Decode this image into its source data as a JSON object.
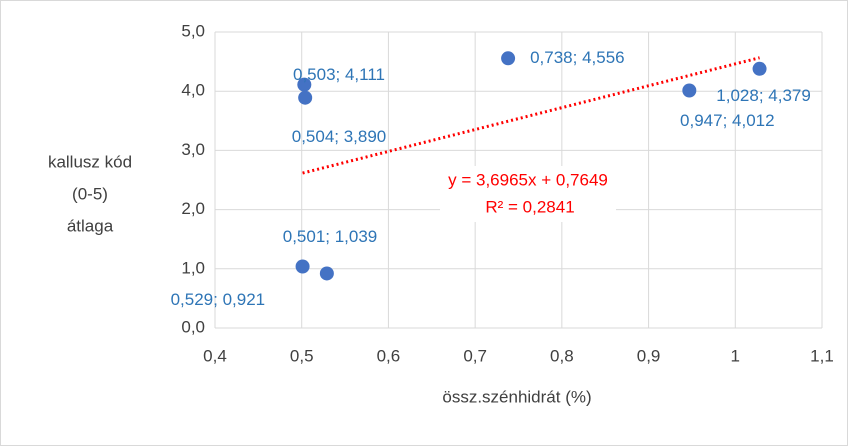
{
  "chart_data": {
    "type": "scatter",
    "xlabel": "össz.szénhidrát (%)",
    "ylabel": [
      "kallusz kód",
      "(0-5)",
      "átlaga"
    ],
    "series": [
      {
        "color": "#4472c4",
        "x": [
          0.503,
          0.504,
          0.738,
          1.028,
          0.947,
          0.501,
          0.529
        ],
        "values": [
          4.111,
          3.89,
          4.556,
          4.379,
          4.012,
          1.039,
          0.921
        ],
        "value_labels": [
          "0,503; 4,111",
          "0,504; 3,890",
          "0,738; 4,556",
          "1,028; 4,379",
          "0,947; 4,012",
          "0,501; 1,039",
          "0,529; 0,921"
        ],
        "label_color": "#2e75b6"
      }
    ],
    "trendline": {
      "slope": 3.6965,
      "intercept": 0.7649,
      "color": "#ff0000",
      "style": "dotted",
      "equation": "y = 3,6965x + 0,7649",
      "r2": "R² = 0,2841"
    },
    "xlim": [
      0.4,
      1.1
    ],
    "xticks": [
      {
        "value": 0.4,
        "label": "0,4"
      },
      {
        "value": 0.5,
        "label": "0,5"
      },
      {
        "value": 0.6,
        "label": "0,6"
      },
      {
        "value": 0.7,
        "label": "0,7"
      },
      {
        "value": 0.8,
        "label": "0,8"
      },
      {
        "value": 0.9,
        "label": "0,9"
      },
      {
        "value": 1.0,
        "label": "1"
      },
      {
        "value": 1.1,
        "label": "1,1"
      }
    ],
    "ylim": [
      0,
      5
    ],
    "yticks": [
      {
        "value": 0,
        "label": "0,0"
      },
      {
        "value": 1,
        "label": "1,0"
      },
      {
        "value": 2,
        "label": "2,0"
      },
      {
        "value": 3,
        "label": "3,0"
      },
      {
        "value": 4,
        "label": "4,0"
      },
      {
        "value": 5,
        "label": "5,0"
      }
    ],
    "grid": true
  }
}
